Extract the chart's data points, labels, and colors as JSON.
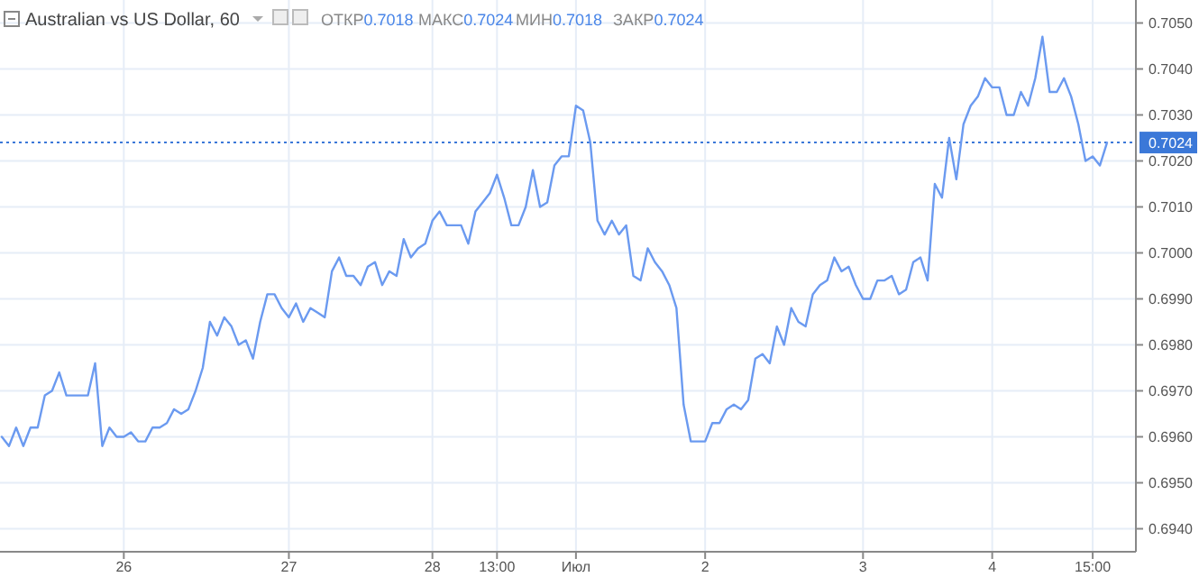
{
  "chart_data": {
    "type": "line",
    "title": "Australian vs US Dollar, 60",
    "annotations": [
      "ОТКР0.7018",
      "МАКС0.7024",
      "МИН0.7018",
      "ЗАКР0.7024"
    ],
    "categories": [
      null,
      null,
      null,
      null,
      null,
      null,
      null,
      null,
      null,
      null,
      null,
      null,
      null,
      null,
      null,
      null,
      null,
      "26",
      null,
      null,
      null,
      null,
      null,
      null,
      null,
      null,
      null,
      null,
      null,
      null,
      null,
      null,
      null,
      null,
      null,
      null,
      null,
      null,
      null,
      null,
      "27",
      null,
      null,
      null,
      null,
      null,
      null,
      null,
      null,
      null,
      null,
      null,
      null,
      null,
      null,
      null,
      null,
      null,
      null,
      null,
      "28",
      null,
      null,
      null,
      null,
      null,
      null,
      null,
      null,
      "13:00",
      null,
      null,
      null,
      null,
      null,
      null,
      null,
      null,
      null,
      null,
      "Июл",
      null,
      null,
      null,
      null,
      null,
      null,
      null,
      null,
      null,
      null,
      null,
      null,
      null,
      null,
      null,
      null,
      null,
      "2",
      null,
      null,
      null,
      null,
      null,
      null,
      null,
      null,
      null,
      null,
      null,
      null,
      null,
      null,
      null,
      null,
      null,
      null,
      null,
      null,
      null,
      "3",
      null,
      null,
      null,
      null,
      null,
      null,
      null,
      null,
      null,
      null,
      null,
      null,
      null,
      null,
      null,
      null,
      null,
      "4",
      null,
      null,
      null,
      null,
      null,
      null,
      null,
      null,
      null,
      null,
      null,
      null,
      null,
      "15:00",
      null,
      null
    ],
    "ylim": [
      0.6935,
      0.7055
    ],
    "yticks": [
      {
        "value": 0.694,
        "label": "0.6940"
      },
      {
        "value": 0.695,
        "label": "0.6950"
      },
      {
        "value": 0.696,
        "label": "0.6960"
      },
      {
        "value": 0.697,
        "label": "0.6970"
      },
      {
        "value": 0.698,
        "label": "0.6980"
      },
      {
        "value": 0.699,
        "label": "0.6990"
      },
      {
        "value": 0.7,
        "label": "0.7000"
      },
      {
        "value": 0.701,
        "label": "0.7010"
      },
      {
        "value": 0.702,
        "label": "0.7020"
      },
      {
        "value": 0.703,
        "label": "0.7030"
      },
      {
        "value": 0.704,
        "label": "0.7040"
      },
      {
        "value": 0.705,
        "label": "0.7050"
      }
    ],
    "grid": true,
    "marker": "none",
    "line_style": "solid",
    "ref_lines": [
      {
        "axis": "y",
        "value": 0.7024,
        "label": "0.7024",
        "color": "#3b78d8",
        "line_style": "dotted"
      }
    ],
    "series": [
      {
        "color": "#6b9af0",
        "values": [
          0.696,
          0.6958,
          0.6962,
          0.6958,
          0.6962,
          0.6962,
          0.6969,
          0.697,
          0.6974,
          0.6969,
          0.6969,
          0.6969,
          0.6969,
          0.6976,
          0.6958,
          0.6962,
          0.696,
          0.696,
          0.6961,
          0.6959,
          0.6959,
          0.6962,
          0.6962,
          0.6963,
          0.6966,
          0.6965,
          0.6966,
          0.697,
          0.6975,
          0.6985,
          0.6982,
          0.6986,
          0.6984,
          0.698,
          0.6981,
          0.6977,
          0.6985,
          0.6991,
          0.6991,
          0.6988,
          0.6986,
          0.6989,
          0.6985,
          0.6988,
          0.6987,
          0.6986,
          0.6996,
          0.6999,
          0.6995,
          0.6995,
          0.6993,
          0.6997,
          0.6998,
          0.6993,
          0.6996,
          0.6995,
          0.7003,
          0.6999,
          0.7001,
          0.7002,
          0.7007,
          0.7009,
          0.7006,
          0.7006,
          0.7006,
          0.7002,
          0.7009,
          0.7011,
          0.7013,
          0.7017,
          0.7012,
          0.7006,
          0.7006,
          0.701,
          0.7018,
          0.701,
          0.7011,
          0.7019,
          0.7021,
          0.7021,
          0.7032,
          0.7031,
          0.7024,
          0.7007,
          0.7004,
          0.7007,
          0.7004,
          0.7006,
          0.6995,
          0.6994,
          0.7001,
          0.6998,
          0.6996,
          0.6993,
          0.6988,
          0.6967,
          0.6959,
          0.6959,
          0.6959,
          0.6963,
          0.6963,
          0.6966,
          0.6967,
          0.6966,
          0.6968,
          0.6977,
          0.6978,
          0.6976,
          0.6984,
          0.698,
          0.6988,
          0.6985,
          0.6984,
          0.6991,
          0.6993,
          0.6994,
          0.6999,
          0.6996,
          0.6997,
          0.6993,
          0.699,
          0.699,
          0.6994,
          0.6994,
          0.6995,
          0.6991,
          0.6992,
          0.6998,
          0.6999,
          0.6994,
          0.7015,
          0.7012,
          0.7025,
          0.7016,
          0.7028,
          0.7032,
          0.7034,
          0.7038,
          0.7036,
          0.7036,
          0.703,
          0.703,
          0.7035,
          0.7032,
          0.7038,
          0.7047,
          0.7035,
          0.7035,
          0.7038,
          0.7034,
          0.7028,
          0.702,
          0.7021,
          0.7019,
          0.7024
        ]
      }
    ]
  }
}
